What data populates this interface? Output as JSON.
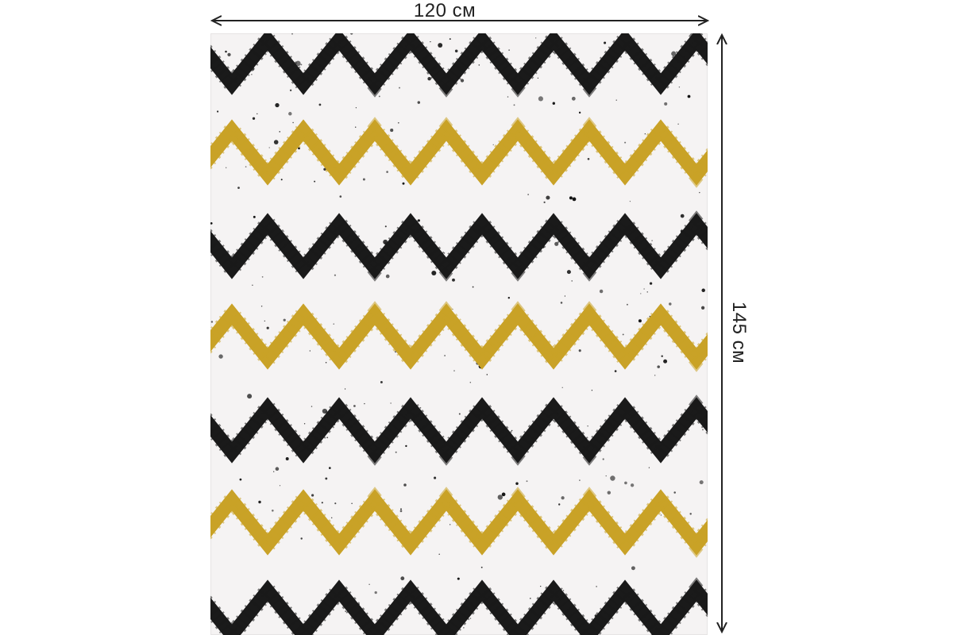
{
  "dimensions": {
    "width_label": "120 см",
    "height_label": "145 см"
  },
  "pattern": {
    "background_color": "#f5f3f3",
    "stripe_colors": [
      "#1a1a1a",
      "#c9a227",
      "#1a1a1a",
      "#c9a227",
      "#1a1a1a",
      "#c9a227",
      "#1a1a1a"
    ],
    "stripe_names": [
      "black-chevron",
      "gold-chevron",
      "black-chevron",
      "gold-chevron",
      "black-chevron",
      "gold-chevron",
      "black-chevron"
    ],
    "speckle_color": "#111111"
  },
  "colors": {
    "dimension_line": "#222222"
  }
}
